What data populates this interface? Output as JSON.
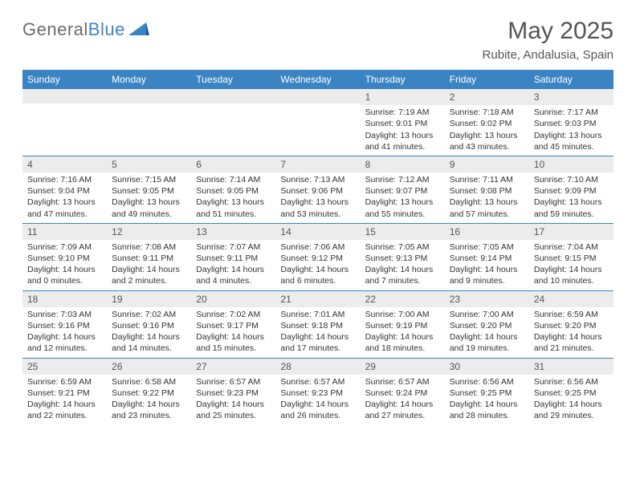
{
  "brand": {
    "part1": "General",
    "part2": "Blue"
  },
  "title": "May 2025",
  "location": "Rubite, Andalusia, Spain",
  "colors": {
    "header_bg": "#3b84c4",
    "header_text": "#ffffff",
    "daynum_bg": "#ececec",
    "border": "#3b84c4",
    "text": "#333333"
  },
  "day_names": [
    "Sunday",
    "Monday",
    "Tuesday",
    "Wednesday",
    "Thursday",
    "Friday",
    "Saturday"
  ],
  "weeks": [
    [
      {
        "n": "",
        "sr": "",
        "ss": "",
        "dl1": "",
        "dl2": ""
      },
      {
        "n": "",
        "sr": "",
        "ss": "",
        "dl1": "",
        "dl2": ""
      },
      {
        "n": "",
        "sr": "",
        "ss": "",
        "dl1": "",
        "dl2": ""
      },
      {
        "n": "",
        "sr": "",
        "ss": "",
        "dl1": "",
        "dl2": ""
      },
      {
        "n": "1",
        "sr": "Sunrise: 7:19 AM",
        "ss": "Sunset: 9:01 PM",
        "dl1": "Daylight: 13 hours",
        "dl2": "and 41 minutes."
      },
      {
        "n": "2",
        "sr": "Sunrise: 7:18 AM",
        "ss": "Sunset: 9:02 PM",
        "dl1": "Daylight: 13 hours",
        "dl2": "and 43 minutes."
      },
      {
        "n": "3",
        "sr": "Sunrise: 7:17 AM",
        "ss": "Sunset: 9:03 PM",
        "dl1": "Daylight: 13 hours",
        "dl2": "and 45 minutes."
      }
    ],
    [
      {
        "n": "4",
        "sr": "Sunrise: 7:16 AM",
        "ss": "Sunset: 9:04 PM",
        "dl1": "Daylight: 13 hours",
        "dl2": "and 47 minutes."
      },
      {
        "n": "5",
        "sr": "Sunrise: 7:15 AM",
        "ss": "Sunset: 9:05 PM",
        "dl1": "Daylight: 13 hours",
        "dl2": "and 49 minutes."
      },
      {
        "n": "6",
        "sr": "Sunrise: 7:14 AM",
        "ss": "Sunset: 9:05 PM",
        "dl1": "Daylight: 13 hours",
        "dl2": "and 51 minutes."
      },
      {
        "n": "7",
        "sr": "Sunrise: 7:13 AM",
        "ss": "Sunset: 9:06 PM",
        "dl1": "Daylight: 13 hours",
        "dl2": "and 53 minutes."
      },
      {
        "n": "8",
        "sr": "Sunrise: 7:12 AM",
        "ss": "Sunset: 9:07 PM",
        "dl1": "Daylight: 13 hours",
        "dl2": "and 55 minutes."
      },
      {
        "n": "9",
        "sr": "Sunrise: 7:11 AM",
        "ss": "Sunset: 9:08 PM",
        "dl1": "Daylight: 13 hours",
        "dl2": "and 57 minutes."
      },
      {
        "n": "10",
        "sr": "Sunrise: 7:10 AM",
        "ss": "Sunset: 9:09 PM",
        "dl1": "Daylight: 13 hours",
        "dl2": "and 59 minutes."
      }
    ],
    [
      {
        "n": "11",
        "sr": "Sunrise: 7:09 AM",
        "ss": "Sunset: 9:10 PM",
        "dl1": "Daylight: 14 hours",
        "dl2": "and 0 minutes."
      },
      {
        "n": "12",
        "sr": "Sunrise: 7:08 AM",
        "ss": "Sunset: 9:11 PM",
        "dl1": "Daylight: 14 hours",
        "dl2": "and 2 minutes."
      },
      {
        "n": "13",
        "sr": "Sunrise: 7:07 AM",
        "ss": "Sunset: 9:11 PM",
        "dl1": "Daylight: 14 hours",
        "dl2": "and 4 minutes."
      },
      {
        "n": "14",
        "sr": "Sunrise: 7:06 AM",
        "ss": "Sunset: 9:12 PM",
        "dl1": "Daylight: 14 hours",
        "dl2": "and 6 minutes."
      },
      {
        "n": "15",
        "sr": "Sunrise: 7:05 AM",
        "ss": "Sunset: 9:13 PM",
        "dl1": "Daylight: 14 hours",
        "dl2": "and 7 minutes."
      },
      {
        "n": "16",
        "sr": "Sunrise: 7:05 AM",
        "ss": "Sunset: 9:14 PM",
        "dl1": "Daylight: 14 hours",
        "dl2": "and 9 minutes."
      },
      {
        "n": "17",
        "sr": "Sunrise: 7:04 AM",
        "ss": "Sunset: 9:15 PM",
        "dl1": "Daylight: 14 hours",
        "dl2": "and 10 minutes."
      }
    ],
    [
      {
        "n": "18",
        "sr": "Sunrise: 7:03 AM",
        "ss": "Sunset: 9:16 PM",
        "dl1": "Daylight: 14 hours",
        "dl2": "and 12 minutes."
      },
      {
        "n": "19",
        "sr": "Sunrise: 7:02 AM",
        "ss": "Sunset: 9:16 PM",
        "dl1": "Daylight: 14 hours",
        "dl2": "and 14 minutes."
      },
      {
        "n": "20",
        "sr": "Sunrise: 7:02 AM",
        "ss": "Sunset: 9:17 PM",
        "dl1": "Daylight: 14 hours",
        "dl2": "and 15 minutes."
      },
      {
        "n": "21",
        "sr": "Sunrise: 7:01 AM",
        "ss": "Sunset: 9:18 PM",
        "dl1": "Daylight: 14 hours",
        "dl2": "and 17 minutes."
      },
      {
        "n": "22",
        "sr": "Sunrise: 7:00 AM",
        "ss": "Sunset: 9:19 PM",
        "dl1": "Daylight: 14 hours",
        "dl2": "and 18 minutes."
      },
      {
        "n": "23",
        "sr": "Sunrise: 7:00 AM",
        "ss": "Sunset: 9:20 PM",
        "dl1": "Daylight: 14 hours",
        "dl2": "and 19 minutes."
      },
      {
        "n": "24",
        "sr": "Sunrise: 6:59 AM",
        "ss": "Sunset: 9:20 PM",
        "dl1": "Daylight: 14 hours",
        "dl2": "and 21 minutes."
      }
    ],
    [
      {
        "n": "25",
        "sr": "Sunrise: 6:59 AM",
        "ss": "Sunset: 9:21 PM",
        "dl1": "Daylight: 14 hours",
        "dl2": "and 22 minutes."
      },
      {
        "n": "26",
        "sr": "Sunrise: 6:58 AM",
        "ss": "Sunset: 9:22 PM",
        "dl1": "Daylight: 14 hours",
        "dl2": "and 23 minutes."
      },
      {
        "n": "27",
        "sr": "Sunrise: 6:57 AM",
        "ss": "Sunset: 9:23 PM",
        "dl1": "Daylight: 14 hours",
        "dl2": "and 25 minutes."
      },
      {
        "n": "28",
        "sr": "Sunrise: 6:57 AM",
        "ss": "Sunset: 9:23 PM",
        "dl1": "Daylight: 14 hours",
        "dl2": "and 26 minutes."
      },
      {
        "n": "29",
        "sr": "Sunrise: 6:57 AM",
        "ss": "Sunset: 9:24 PM",
        "dl1": "Daylight: 14 hours",
        "dl2": "and 27 minutes."
      },
      {
        "n": "30",
        "sr": "Sunrise: 6:56 AM",
        "ss": "Sunset: 9:25 PM",
        "dl1": "Daylight: 14 hours",
        "dl2": "and 28 minutes."
      },
      {
        "n": "31",
        "sr": "Sunrise: 6:56 AM",
        "ss": "Sunset: 9:25 PM",
        "dl1": "Daylight: 14 hours",
        "dl2": "and 29 minutes."
      }
    ]
  ]
}
